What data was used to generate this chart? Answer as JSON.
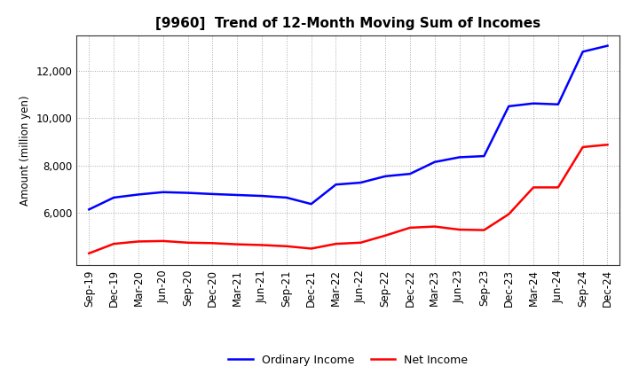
{
  "title": "[9960]  Trend of 12-Month Moving Sum of Incomes",
  "ylabel": "Amount (million yen)",
  "background_color": "#ffffff",
  "grid_color": "#aaaaaa",
  "ordinary_income_color": "#0000ff",
  "net_income_color": "#ff0000",
  "labels": [
    "Sep-19",
    "Dec-19",
    "Mar-20",
    "Jun-20",
    "Sep-20",
    "Dec-20",
    "Mar-21",
    "Jun-21",
    "Sep-21",
    "Dec-21",
    "Mar-22",
    "Jun-22",
    "Sep-22",
    "Dec-22",
    "Mar-23",
    "Jun-23",
    "Sep-23",
    "Dec-23",
    "Mar-24",
    "Jun-24",
    "Sep-24",
    "Dec-24"
  ],
  "ordinary_income": [
    6150,
    6650,
    6780,
    6880,
    6850,
    6800,
    6760,
    6720,
    6650,
    6380,
    7200,
    7280,
    7550,
    7650,
    8150,
    8350,
    8400,
    10500,
    10620,
    10580,
    12800,
    13050
  ],
  "net_income": [
    4300,
    4700,
    4800,
    4820,
    4750,
    4730,
    4680,
    4650,
    4600,
    4500,
    4700,
    4750,
    5050,
    5380,
    5430,
    5300,
    5280,
    5950,
    7080,
    7080,
    8780,
    8880
  ],
  "ylim": [
    3800,
    13500
  ],
  "yticks": [
    6000,
    8000,
    10000,
    12000
  ],
  "title_fontsize": 11,
  "legend_fontsize": 9,
  "axis_fontsize": 8.5
}
